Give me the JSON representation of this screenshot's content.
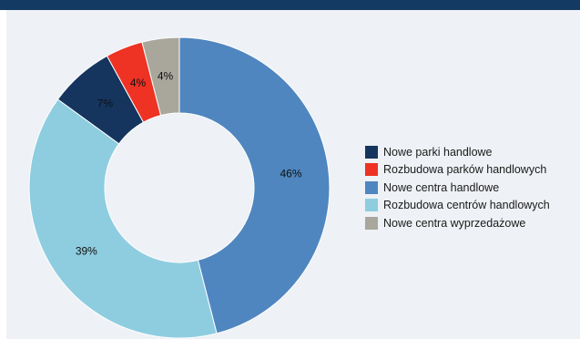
{
  "chart_data": {
    "type": "pie",
    "style": "donut",
    "categories": [
      "Nowe parki handlowe",
      "Rozbudowa parków handlowych",
      "Nowe centra handlowe",
      "Rozbudowa centrów handlowych",
      "Nowe centra wyprzedażowe"
    ],
    "values": [
      7,
      4,
      46,
      39,
      4
    ],
    "value_labels": [
      "7%",
      "4%",
      "46%",
      "39%",
      "4%"
    ],
    "colors": [
      "#15355e",
      "#ee3224",
      "#4f86c0",
      "#8ecde0",
      "#a9a79c"
    ],
    "draw_order": [
      2,
      3,
      0,
      1,
      4
    ],
    "legend_position": "right"
  },
  "colors": {
    "header_bar": "#123a63",
    "panel_background": "#eef1f5"
  }
}
